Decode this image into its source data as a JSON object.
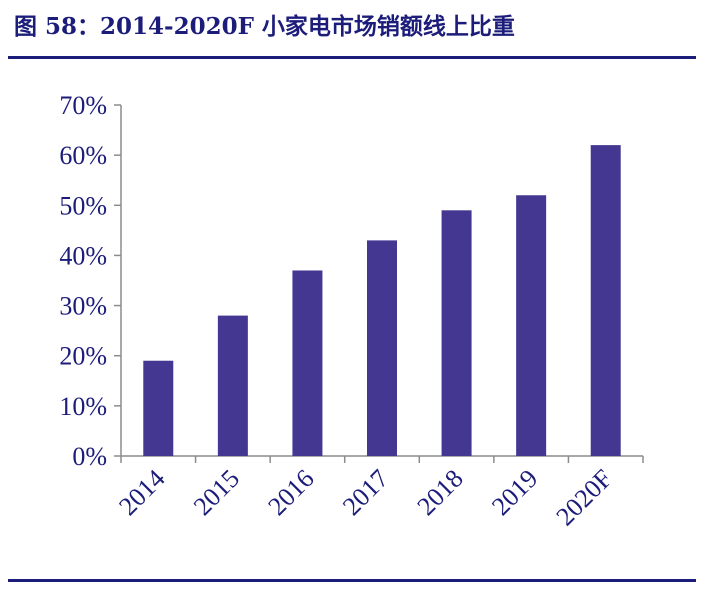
{
  "figure": {
    "title": "图 58：2014-2020F 小家电市场销额线上比重"
  },
  "colors": {
    "title": "#1c1c7a",
    "bar": "#433792",
    "axis": "#8c8c8c",
    "tick_text": "#1c1c7a"
  },
  "chart_data": {
    "type": "bar",
    "categories": [
      "2014",
      "2015",
      "2016",
      "2017",
      "2018",
      "2019",
      "2020F"
    ],
    "values": [
      19,
      28,
      37,
      43,
      49,
      52,
      62
    ],
    "value_unit": "%",
    "ylim": [
      0,
      70
    ],
    "y_ticks": [
      "0%",
      "10%",
      "20%",
      "30%",
      "40%",
      "50%",
      "60%",
      "70%"
    ],
    "y_tick_values": [
      0,
      10,
      20,
      30,
      40,
      50,
      60,
      70
    ],
    "grid": false,
    "legend": "none",
    "x_tick_rotation": "diagonal"
  }
}
